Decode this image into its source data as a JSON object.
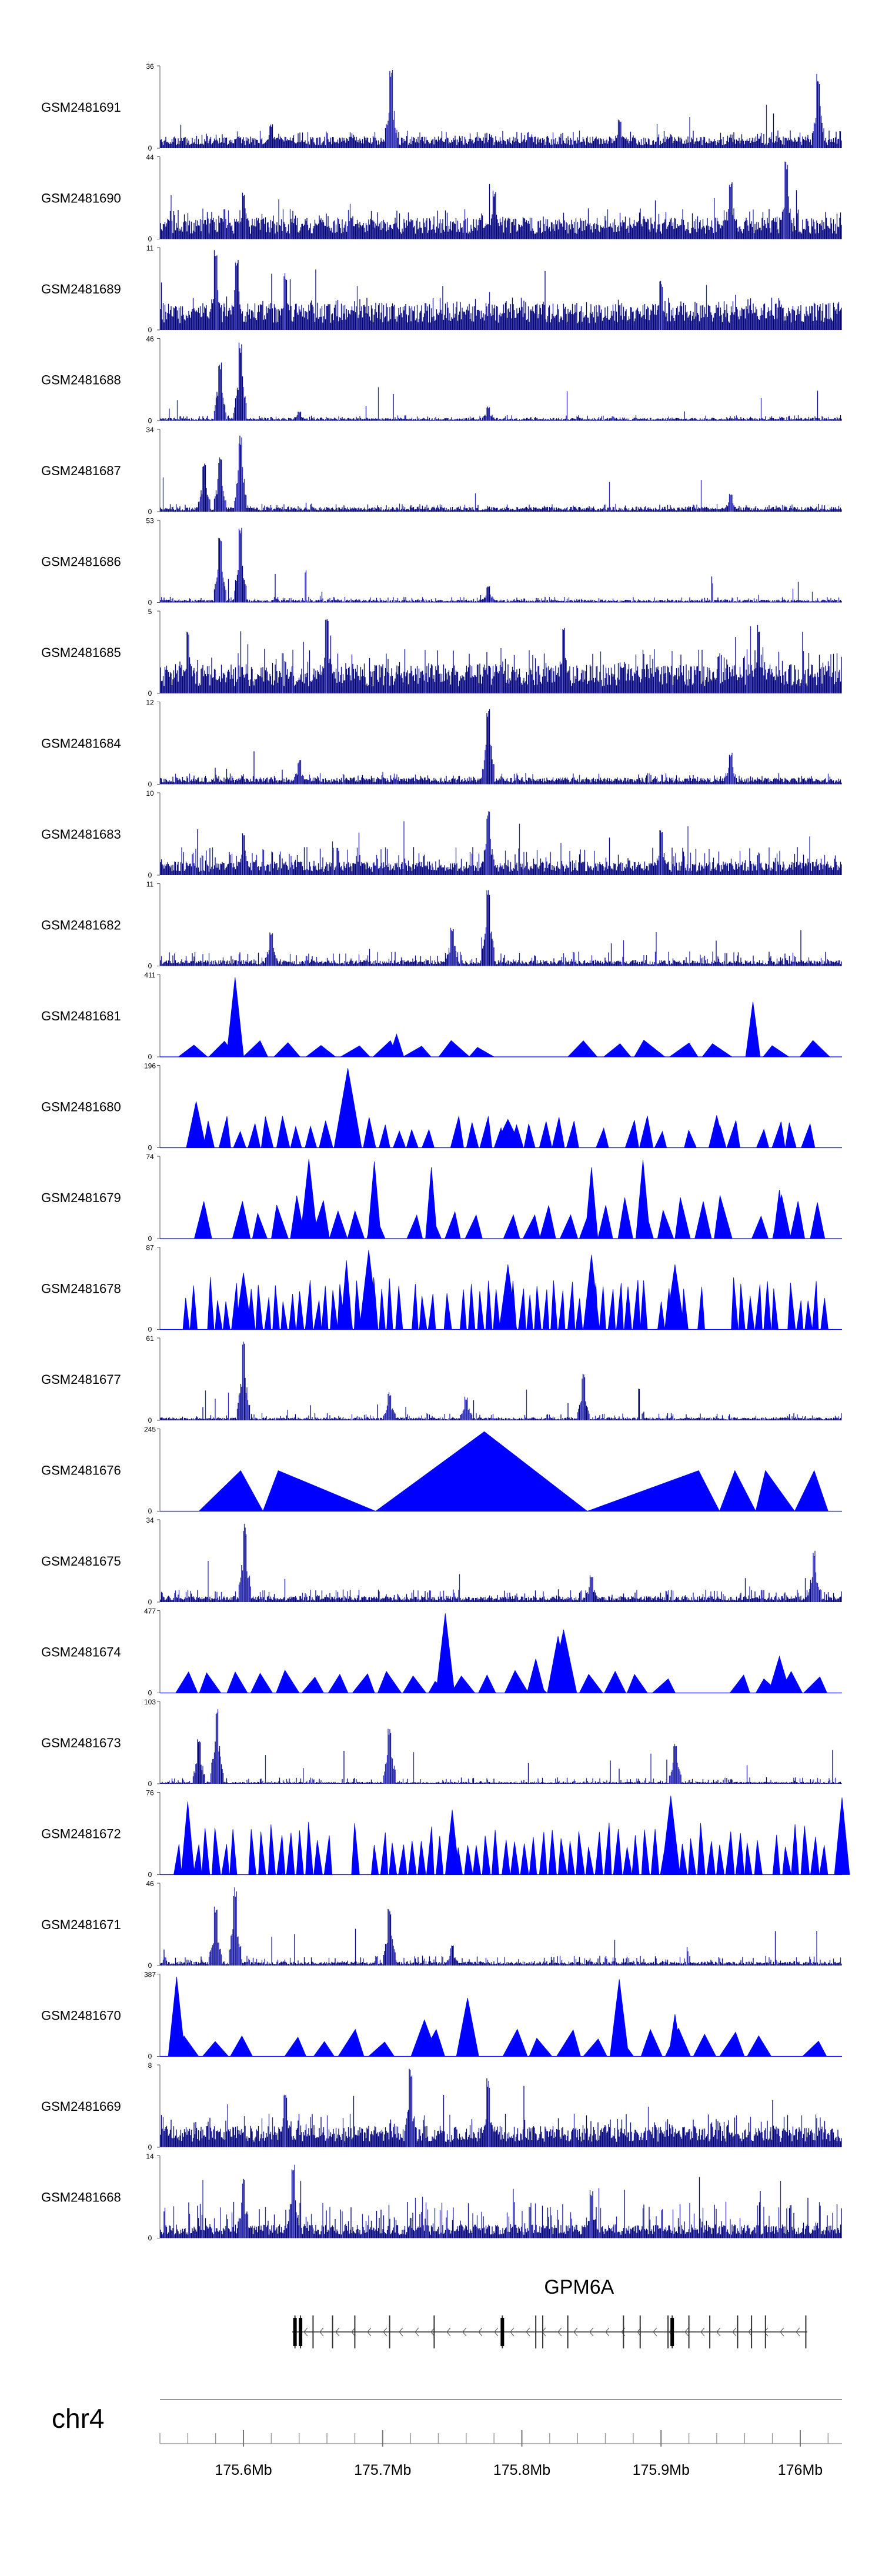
{
  "chart_data": {
    "type": "area",
    "chromosome": "chr4",
    "xlim": [
      175.54,
      176.03
    ],
    "tracks": [
      {
        "name": "GSM2481691",
        "ymax": 36,
        "ymin": 0,
        "style": "dense",
        "baseline": 0.12,
        "noise": 0.22,
        "peaks": [
          [
            175.706,
            1.0
          ],
          [
            176.013,
            0.92
          ],
          [
            175.87,
            0.38
          ],
          [
            175.62,
            0.3
          ]
        ]
      },
      {
        "name": "GSM2481690",
        "ymax": 44,
        "ymin": 0,
        "style": "dense",
        "baseline": 0.22,
        "noise": 0.38,
        "peaks": [
          [
            175.99,
            0.98
          ],
          [
            175.95,
            0.7
          ],
          [
            175.6,
            0.62
          ],
          [
            175.78,
            0.6
          ]
        ]
      },
      {
        "name": "GSM2481689",
        "ymax": 11,
        "ymin": 0,
        "style": "dense",
        "baseline": 0.28,
        "noise": 0.4,
        "peaks": [
          [
            175.58,
            1.0
          ],
          [
            175.595,
            0.92
          ],
          [
            175.63,
            0.7
          ],
          [
            175.9,
            0.62
          ]
        ]
      },
      {
        "name": "GSM2481688",
        "ymax": 46,
        "ymin": 0,
        "style": "dense",
        "baseline": 0.03,
        "noise": 0.07,
        "peaks": [
          [
            175.583,
            0.74
          ],
          [
            175.598,
            0.97
          ],
          [
            175.776,
            0.18
          ],
          [
            175.64,
            0.12
          ]
        ]
      },
      {
        "name": "GSM2481687",
        "ymax": 34,
        "ymin": 0,
        "style": "dense",
        "baseline": 0.05,
        "noise": 0.1,
        "peaks": [
          [
            175.572,
            0.6
          ],
          [
            175.583,
            0.7
          ],
          [
            175.598,
            0.97
          ],
          [
            175.95,
            0.22
          ]
        ]
      },
      {
        "name": "GSM2481686",
        "ymax": 53,
        "ymin": 0,
        "style": "dense",
        "baseline": 0.03,
        "noise": 0.07,
        "peaks": [
          [
            175.583,
            0.86
          ],
          [
            175.598,
            0.96
          ],
          [
            175.776,
            0.2
          ]
        ]
      },
      {
        "name": "GSM2481685",
        "ymax": 5,
        "ymin": 0,
        "style": "dense",
        "baseline": 0.3,
        "noise": 0.55,
        "peaks": [
          [
            175.66,
            0.95
          ],
          [
            175.83,
            0.9
          ],
          [
            175.56,
            0.8
          ],
          [
            175.97,
            0.85
          ]
        ]
      },
      {
        "name": "GSM2481684",
        "ymax": 12,
        "ymin": 0,
        "style": "dense",
        "baseline": 0.07,
        "noise": 0.14,
        "peaks": [
          [
            175.776,
            0.97
          ],
          [
            175.95,
            0.4
          ],
          [
            175.64,
            0.3
          ]
        ]
      },
      {
        "name": "GSM2481683",
        "ymax": 10,
        "ymin": 0,
        "style": "dense",
        "baseline": 0.14,
        "noise": 0.35,
        "peaks": [
          [
            175.776,
            0.8
          ],
          [
            175.9,
            0.6
          ],
          [
            175.6,
            0.55
          ]
        ]
      },
      {
        "name": "GSM2481682",
        "ymax": 11,
        "ymin": 0,
        "style": "dense",
        "baseline": 0.06,
        "noise": 0.18,
        "peaks": [
          [
            175.776,
            0.97
          ],
          [
            175.75,
            0.5
          ],
          [
            175.62,
            0.45
          ]
        ]
      },
      {
        "name": "GSM2481681",
        "ymax": 411,
        "ymin": 0,
        "style": "sparse",
        "n": 20,
        "maxh": 0.22,
        "peaks": [
          [
            175.594,
            0.98
          ],
          [
            175.966,
            0.68
          ],
          [
            175.71,
            0.28
          ]
        ]
      },
      {
        "name": "GSM2481680",
        "ymax": 196,
        "ymin": 0,
        "style": "sparse",
        "n": 45,
        "maxh": 0.4,
        "peaks": [
          [
            175.566,
            0.57
          ],
          [
            175.675,
            0.98
          ],
          [
            175.79,
            0.35
          ],
          [
            175.94,
            0.4
          ]
        ]
      },
      {
        "name": "GSM2481679",
        "ymax": 74,
        "ymin": 0,
        "style": "sparse",
        "n": 34,
        "maxh": 0.55,
        "peaks": [
          [
            175.647,
            0.98
          ],
          [
            175.694,
            0.95
          ],
          [
            175.735,
            0.88
          ],
          [
            175.887,
            0.97
          ],
          [
            175.85,
            0.88
          ],
          [
            175.985,
            0.6
          ]
        ]
      },
      {
        "name": "GSM2481678",
        "ymax": 87,
        "ymin": 0,
        "style": "sparse",
        "n": 80,
        "maxh": 0.65,
        "peaks": [
          [
            175.69,
            0.98
          ],
          [
            175.674,
            0.85
          ],
          [
            175.85,
            0.92
          ],
          [
            175.91,
            0.8
          ],
          [
            175.79,
            0.8
          ],
          [
            175.6,
            0.7
          ]
        ]
      },
      {
        "name": "GSM2481677",
        "ymax": 61,
        "ymin": 0,
        "style": "dense",
        "baseline": 0.03,
        "noise": 0.09,
        "peaks": [
          [
            175.6,
            0.98
          ],
          [
            175.844,
            0.58
          ],
          [
            175.705,
            0.35
          ],
          [
            175.76,
            0.3
          ]
        ]
      },
      {
        "name": "GSM2481676",
        "ymax": 245,
        "ymin": 0,
        "style": "sparse",
        "n": 0,
        "maxh": 0,
        "shapes": [
          [
            175.568,
            175.598,
            175.614,
            0.5
          ],
          [
            175.614,
            175.625,
            175.695,
            0.5
          ],
          [
            175.695,
            175.773,
            175.847,
            0.98
          ],
          [
            175.847,
            175.927,
            175.942,
            0.5
          ],
          [
            175.942,
            175.953,
            175.968,
            0.5
          ],
          [
            175.968,
            175.975,
            175.996,
            0.5
          ],
          [
            175.996,
            176.01,
            176.02,
            0.5
          ]
        ]
      },
      {
        "name": "GSM2481675",
        "ymax": 34,
        "ymin": 0,
        "style": "dense",
        "baseline": 0.06,
        "noise": 0.16,
        "peaks": [
          [
            175.601,
            0.98
          ],
          [
            176.01,
            0.65
          ],
          [
            175.85,
            0.35
          ]
        ]
      },
      {
        "name": "GSM2481674",
        "ymax": 477,
        "ymin": 0,
        "style": "sparse",
        "n": 26,
        "maxh": 0.28,
        "peaks": [
          [
            175.745,
            0.98
          ],
          [
            175.83,
            0.78
          ],
          [
            175.826,
            0.7
          ],
          [
            175.775,
            0.22
          ],
          [
            175.81,
            0.42
          ],
          [
            175.985,
            0.45
          ]
        ]
      },
      {
        "name": "GSM2481673",
        "ymax": 103,
        "ymin": 0,
        "style": "dense",
        "baseline": 0.02,
        "noise": 0.08,
        "peaks": [
          [
            175.581,
            0.98
          ],
          [
            175.568,
            0.55
          ],
          [
            175.705,
            0.68
          ],
          [
            175.91,
            0.5
          ]
        ]
      },
      {
        "name": "GSM2481672",
        "ymax": 76,
        "ymin": 0,
        "style": "sparse",
        "n": 70,
        "maxh": 0.65,
        "peaks": [
          [
            175.907,
            0.97
          ],
          [
            176.03,
            0.95
          ],
          [
            175.56,
            0.9
          ],
          [
            175.75,
            0.8
          ]
        ]
      },
      {
        "name": "GSM2481671",
        "ymax": 46,
        "ymin": 0,
        "style": "dense",
        "baseline": 0.04,
        "noise": 0.12,
        "peaks": [
          [
            175.594,
            0.98
          ],
          [
            175.58,
            0.75
          ],
          [
            175.705,
            0.7
          ],
          [
            175.75,
            0.25
          ]
        ]
      },
      {
        "name": "GSM2481670",
        "ymax": 387,
        "ymin": 0,
        "style": "sparse",
        "n": 24,
        "maxh": 0.35,
        "peaks": [
          [
            175.552,
            0.98
          ],
          [
            175.761,
            0.72
          ],
          [
            175.73,
            0.45
          ],
          [
            175.87,
            0.95
          ],
          [
            175.91,
            0.52
          ]
        ]
      },
      {
        "name": "GSM2481669",
        "ymax": 8,
        "ymin": 0,
        "style": "dense",
        "baseline": 0.22,
        "noise": 0.42,
        "peaks": [
          [
            175.72,
            0.97
          ],
          [
            175.776,
            0.85
          ],
          [
            175.63,
            0.7
          ]
        ]
      },
      {
        "name": "GSM2481668",
        "ymax": 14,
        "ymin": 0,
        "style": "dense",
        "baseline": 0.14,
        "noise": 0.45,
        "peaks": [
          [
            175.636,
            0.95
          ],
          [
            175.6,
            0.75
          ],
          [
            175.85,
            0.6
          ]
        ]
      }
    ],
    "gene": {
      "name": "GPM6A",
      "start": 175.635,
      "end": 176.005,
      "strand": "-",
      "exons": [
        175.637,
        175.641,
        175.65,
        175.664,
        175.68,
        175.705,
        175.737,
        175.786,
        175.81,
        175.815,
        175.833,
        175.873,
        175.885,
        175.905,
        175.908,
        175.92,
        175.935,
        175.955,
        175.965,
        175.975,
        176.004
      ],
      "thick_exons": [
        175.637,
        175.641,
        175.786,
        175.908
      ]
    },
    "axis": {
      "tick_labels": [
        "175.6Mb",
        "175.7Mb",
        "175.8Mb",
        "175.9Mb",
        "176Mb"
      ],
      "tick_values": [
        175.6,
        175.7,
        175.8,
        175.9,
        176.0
      ],
      "minor_tick_step": 0.02
    }
  },
  "colors": {
    "track_fill": "#0000ff",
    "track_dense": "#00007f",
    "track_dense_light": "#2a2ab8",
    "gene": "#000000",
    "axis": "#444444"
  }
}
